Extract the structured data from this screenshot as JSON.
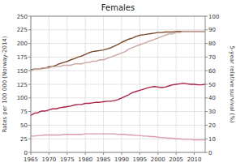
{
  "chart_data": {
    "type": "line",
    "title": "Females",
    "ylabel": "Rates per 100 000 (Norway-2014)",
    "y2label": "5-year relative survival (%)",
    "x": [
      1965,
      1966,
      1967,
      1968,
      1969,
      1970,
      1971,
      1972,
      1973,
      1974,
      1975,
      1976,
      1977,
      1978,
      1979,
      1980,
      1981,
      1982,
      1983,
      1984,
      1985,
      1986,
      1987,
      1988,
      1989,
      1990,
      1991,
      1992,
      1993,
      1994,
      1995,
      1996,
      1997,
      1998,
      1999,
      2000,
      2001,
      2002,
      2003,
      2004,
      2005,
      2006,
      2007,
      2008,
      2009,
      2010,
      2011,
      2012,
      2013
    ],
    "xlim": [
      1965,
      2013
    ],
    "xticks": [
      1965,
      1970,
      1975,
      1980,
      1985,
      1990,
      1995,
      2000,
      2005,
      2010
    ],
    "ylim": [
      0,
      250
    ],
    "yticks": [
      0,
      25,
      50,
      75,
      100,
      125,
      150,
      175,
      200,
      225,
      250
    ],
    "y2lim": [
      0,
      100
    ],
    "y2ticks": [
      0,
      10,
      20,
      30,
      40,
      50,
      60,
      70,
      80,
      90,
      100
    ],
    "grid": true,
    "series": [
      {
        "color": "#7a4a2a",
        "values": [
          152,
          153,
          153,
          154,
          155,
          157,
          158,
          160,
          163,
          165,
          167,
          170,
          172,
          175,
          177,
          180,
          183,
          185,
          186,
          187,
          188,
          190,
          192,
          195,
          198,
          202,
          205,
          208,
          210,
          213,
          215,
          216,
          217,
          218,
          219,
          220,
          220,
          221,
          221,
          221,
          222,
          222,
          222,
          222,
          222,
          222,
          222,
          222,
          222
        ]
      },
      {
        "color": "#aa2244",
        "values": [
          68,
          72,
          73,
          76,
          76,
          78,
          80,
          80,
          82,
          83,
          84,
          85,
          87,
          88,
          88,
          90,
          90,
          91,
          92,
          92,
          93,
          94,
          94,
          95,
          97,
          100,
          103,
          106,
          110,
          112,
          114,
          116,
          118,
          120,
          121,
          120,
          119,
          120,
          122,
          124,
          125,
          126,
          127,
          126,
          125,
          125,
          124,
          124,
          125
        ]
      },
      {
        "color": "#d899aa",
        "values": [
          30,
          30,
          31,
          31,
          32,
          32,
          32,
          32,
          32,
          33,
          33,
          33,
          33,
          33,
          33,
          34,
          34,
          34,
          34,
          34,
          34,
          34,
          34,
          34,
          33,
          33,
          33,
          32,
          32,
          31,
          31,
          30,
          30,
          29,
          29,
          28,
          27,
          27,
          26,
          26,
          25,
          25,
          24,
          24,
          24,
          23,
          23,
          23,
          23
        ]
      },
      {
        "color": "#c8a8a0",
        "axis": "y2",
        "values": [
          60,
          61,
          61,
          62,
          62,
          62,
          63,
          63,
          63,
          64,
          64,
          64,
          65,
          65,
          65,
          66,
          66,
          67,
          67,
          68,
          68,
          69,
          70,
          71,
          72,
          73,
          74,
          76,
          77,
          78,
          79,
          80,
          81,
          82,
          83,
          84,
          85,
          86,
          87,
          87,
          88,
          88,
          89,
          89,
          89,
          89,
          89,
          89,
          89
        ]
      }
    ]
  }
}
